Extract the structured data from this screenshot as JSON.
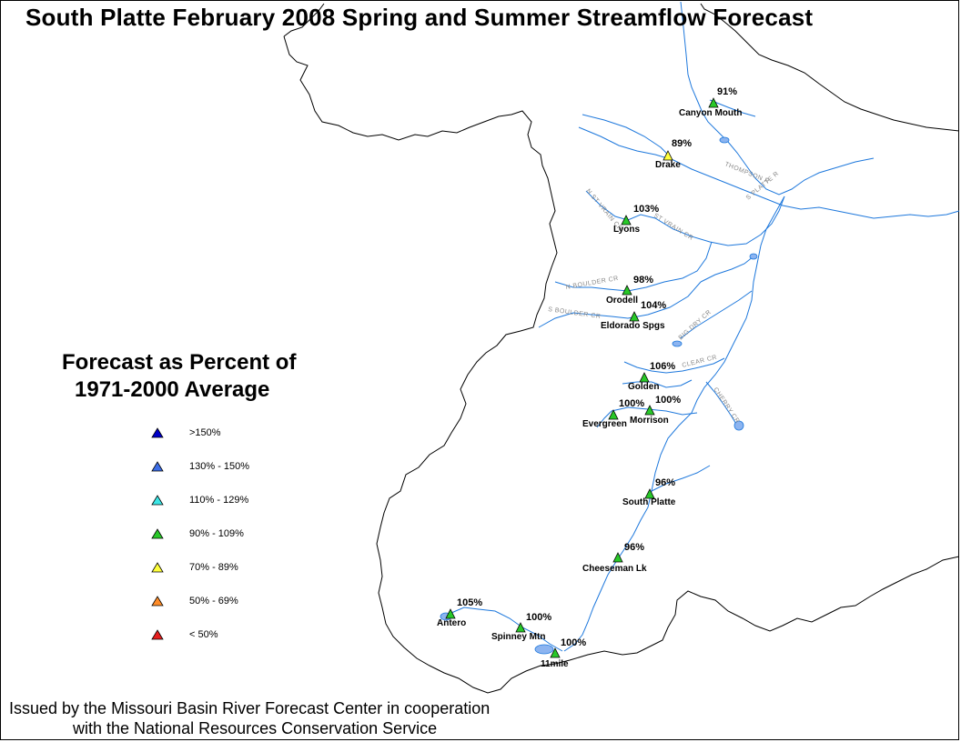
{
  "title": "South Platte February 2008 Spring and Summer Streamflow Forecast",
  "legend": {
    "title_line1": "Forecast as Percent of",
    "title_line2": "1971-2000 Average",
    "items": [
      {
        "label": ">150%",
        "color": "#0000c8"
      },
      {
        "label": "130% - 150%",
        "color": "#3c6ee6"
      },
      {
        "label": "110% - 129%",
        "color": "#3ce6e6"
      },
      {
        "label": "90% - 109%",
        "color": "#28c828"
      },
      {
        "label": "70% - 89%",
        "color": "#ffff3c"
      },
      {
        "label": "50% - 69%",
        "color": "#ff8c28"
      },
      {
        "label": "< 50%",
        "color": "#e61e1e"
      }
    ]
  },
  "stations": [
    {
      "name": "Canyon Mouth",
      "percent": "91%",
      "color": "#28c828"
    },
    {
      "name": "Drake",
      "percent": "89%",
      "color": "#ffff3c"
    },
    {
      "name": "Lyons",
      "percent": "103%",
      "color": "#28c828"
    },
    {
      "name": "Orodell",
      "percent": "98%",
      "color": "#28c828"
    },
    {
      "name": "Eldorado Spgs",
      "percent": "104%",
      "color": "#28c828"
    },
    {
      "name": "Golden",
      "percent": "106%",
      "color": "#28c828"
    },
    {
      "name": "Evergreen",
      "percent": "100%",
      "color": "#28c828"
    },
    {
      "name": "Morrison",
      "percent": "100%",
      "color": "#28c828"
    },
    {
      "name": "South Platte",
      "percent": "96%",
      "color": "#28c828"
    },
    {
      "name": "Cheeseman Lk",
      "percent": "96%",
      "color": "#28c828"
    },
    {
      "name": "Antero",
      "percent": "105%",
      "color": "#28c828"
    },
    {
      "name": "Spinney Mtn",
      "percent": "100%",
      "color": "#28c828"
    },
    {
      "name": "11mile",
      "percent": "100%",
      "color": "#28c828"
    }
  ],
  "rivers": [
    {
      "label": "THOMPSON R"
    },
    {
      "label": "S PLATTE R"
    },
    {
      "label": "ST VRAIN CR"
    },
    {
      "label": "N BOULDER CR"
    },
    {
      "label": "S BOULDER CR"
    },
    {
      "label": "BIG DRY CR"
    },
    {
      "label": "CLEAR CR"
    },
    {
      "label": "CHERRY CR"
    },
    {
      "label": "N ST VRAIN CR"
    }
  ],
  "colors": {
    "river": "#1e78dc",
    "lake": "#8cb4f0",
    "boundary": "#000000"
  },
  "footer": {
    "line1": "Issued by the Missouri Basin River Forecast Center in cooperation",
    "line2": "with the National Resources Conservation Service"
  }
}
